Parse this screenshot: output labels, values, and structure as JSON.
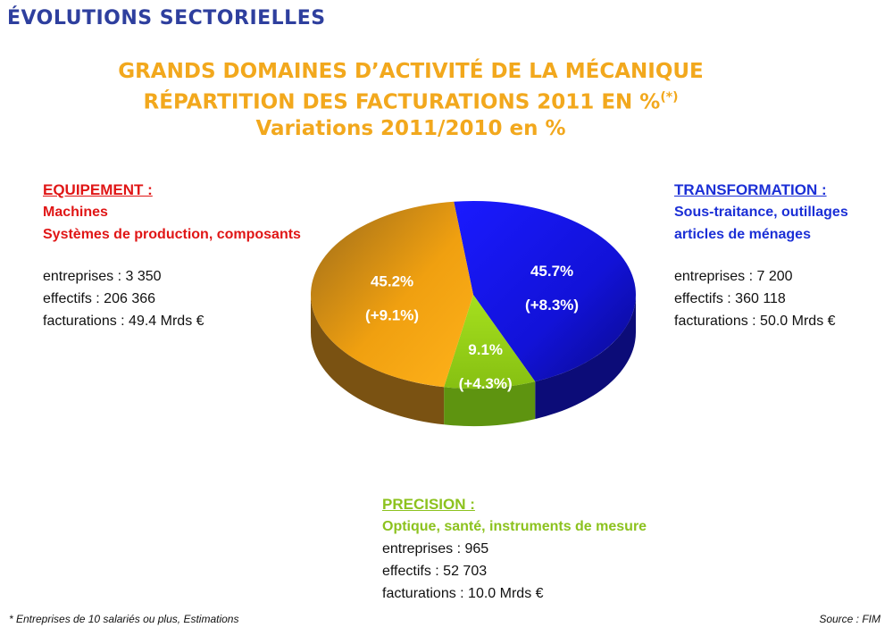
{
  "page": {
    "section_title": "ÉVOLUTIONS SECTORIELLES"
  },
  "title": {
    "line1": "GRANDS DOMAINES D’ACTIVITÉ DE LA MÉCANIQUE",
    "line2": "RÉPARTITION DES FACTURATIONS 2011 EN %",
    "line2_note": "(*)",
    "line3": "Variations 2011/2010 en %"
  },
  "sectors": {
    "equipement": {
      "head": "EQUIPEMENT :",
      "sub1": "Machines",
      "sub2": "Systèmes de production, composants",
      "entreprises": "entreprises : 3 350",
      "effectifs": "effectifs : 206 366",
      "facturations": "facturations : 49.4 Mrds €"
    },
    "transformation": {
      "head": "TRANSFORMATION :",
      "sub1": "Sous-traitance, outillages",
      "sub2": "articles de ménages",
      "entreprises": "entreprises : 7 200",
      "effectifs": "effectifs : 360 118",
      "facturations": "facturations : 50.0 Mrds €"
    },
    "precision": {
      "head": "PRECISION :",
      "sub1": "Optique, santé, instruments de mesure",
      "entreprises": "entreprises : 965",
      "effectifs": "effectifs : 52 703",
      "facturations": "facturations : 10.0 Mrds €"
    }
  },
  "chart_data": {
    "type": "pie",
    "title": "RÉPARTITION DES FACTURATIONS 2011 EN %",
    "slices": [
      {
        "name": "TRANSFORMATION",
        "value": 45.7,
        "label": "45.7%",
        "variation": "(+8.3%)",
        "color": "#1414e0"
      },
      {
        "name": "PRECISION",
        "value": 9.1,
        "label": "9.1%",
        "variation": "(+4.3%)",
        "color": "#9ad61a"
      },
      {
        "name": "EQUIPEMENT",
        "value": 45.2,
        "label": "45.2%",
        "variation": "(+9.1%)",
        "color": "#f0a010"
      }
    ]
  },
  "footer": {
    "footnote": "* Entreprises de 10 salariés ou plus, Estimations",
    "source": "Source : FIM"
  }
}
